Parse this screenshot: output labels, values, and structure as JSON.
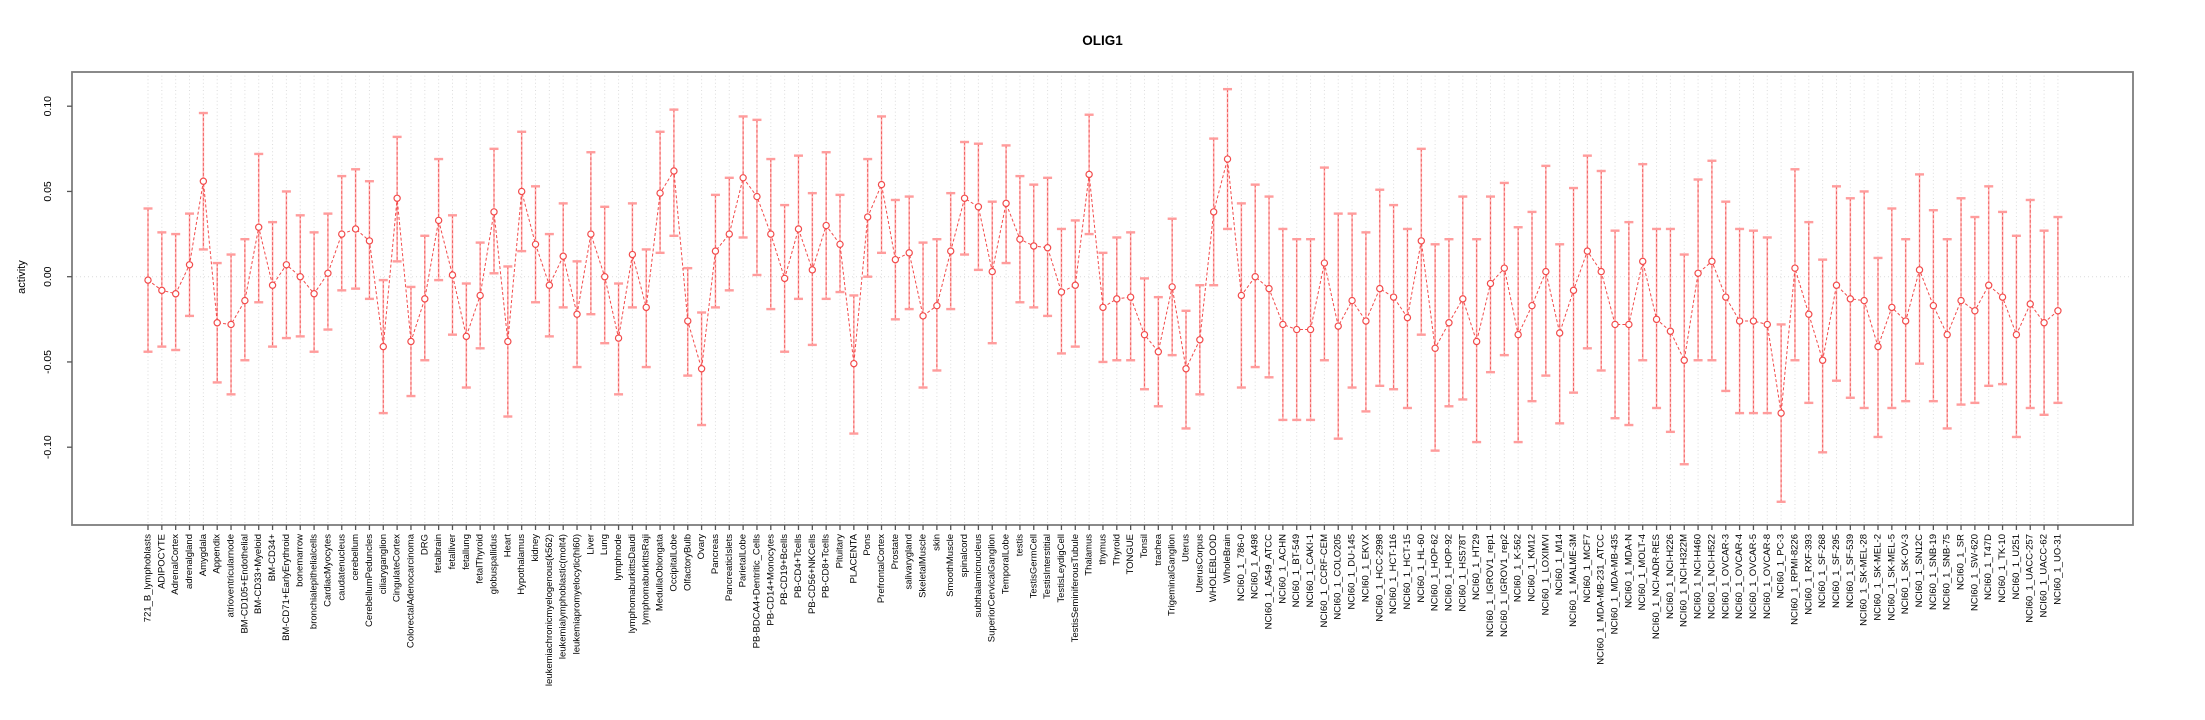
{
  "title": "OLIG1",
  "y_axis": {
    "label": "activity",
    "ticks": [
      "0.10",
      "0.05",
      "0.00",
      "-0.05",
      "-0.10"
    ],
    "tick_values": [
      0.1,
      0.05,
      0.0,
      -0.05,
      -0.1
    ]
  },
  "style": {
    "series_color": "#f24b4b",
    "stem_dash_color": "#f26060",
    "stem_underlay_color": "#ffb3b3",
    "cap_color": "#ff9c9c",
    "grid_color": "#dcdcdc",
    "border_color": "#7d7d7d",
    "tick_color": "#555555",
    "text_color": "#000000",
    "background": "#ffffff"
  },
  "chart_data": {
    "type": "line",
    "title": "OLIG1",
    "xlabel": "",
    "ylabel": "activity",
    "ylim": [
      -0.146,
      0.12
    ],
    "y_ticks": [
      -0.1,
      -0.05,
      0.0,
      0.05,
      0.1
    ],
    "grid": "vertical dotted gridline per category; dotted horizontal line at 0",
    "legend": "none",
    "marker": "open-circle",
    "line_style": "dashed",
    "error_bars": true,
    "categories": [
      "721_B_lymphoblasts",
      "ADIPOCYTE",
      "AdrenalCortex",
      "adrenalgland",
      "Amygdala",
      "Appendix",
      "atrioventricularnode",
      "BM-CD105+Endothelial",
      "BM-CD33+Myeloid",
      "BM-CD34+",
      "BM-CD71+EarlyErythroid",
      "bonemarrow",
      "bronchialepithelialcells",
      "CardiacMyocytes",
      "caudatenucleus",
      "cerebellum",
      "CerebellumPeduncles",
      "ciliaryganglion",
      "CingulateCortex",
      "ColorectalAdenocarcinoma",
      "DRG",
      "fetalbrain",
      "fetalliver",
      "fetallung",
      "fetalThyroid",
      "globuspallidus",
      "Heart",
      "Hypothalamus",
      "kidney",
      "leukemiachronicmyelogenous(k562)",
      "leukemialymphoblastic(molt4)",
      "leukemiapromyelocytic(hl60)",
      "Liver",
      "Lung",
      "lymphnode",
      "lymphomaburkittsDaudi",
      "lymphomaburkittsRaji",
      "MedullaOblongata",
      "OccipitalLobe",
      "OlfactoryBulb",
      "Ovary",
      "Pancreas",
      "PancreaticIslets",
      "ParietalLobe",
      "PB-BDCA4+Dentritic_Cells",
      "PB-CD14+Monocytes",
      "PB-CD19+Bcells",
      "PB-CD4+Tcells",
      "PB-CD56+NKCells",
      "PB-CD8+Tcells",
      "Pituitary",
      "PLACENTA",
      "Pons",
      "PrefrontalCortex",
      "Prostate",
      "salivarygland",
      "SkeletalMuscle",
      "skin",
      "SmoothMuscle",
      "spinalcord",
      "subthalamicnucleus",
      "SuperiorCervicalGanglion",
      "TemporalLobe",
      "testis",
      "TestisGermCell",
      "TestisInterstitial",
      "TestisLeydigCell",
      "TestisSeminiferousTubule",
      "Thalamus",
      "thymus",
      "Thyroid",
      "TONGUE",
      "Tonsil",
      "trachea",
      "TrigeminalGanglion",
      "Uterus",
      "UterusCorpus",
      "WHOLEBLOOD",
      "WholeBrain",
      "NCI60_1_786-0",
      "NCI60_1_A498",
      "NCI60_1_A549_ATCC",
      "NCI60_1_ACHN",
      "NCI60_1_BT-549",
      "NCI60_1_CAKI-1",
      "NCI60_1_CCRF-CEM",
      "NCI60_1_COLO205",
      "NCI60_1_DU-145",
      "NCI60_1_EKVX",
      "NCI60_1_HCC-2998",
      "NCI60_1_HCT-116",
      "NCI60_1_HCT-15",
      "NCI60_1_HL-60",
      "NCI60_1_HOP-62",
      "NCI60_1_HOP-92",
      "NCI60_1_HS578T",
      "NCI60_1_HT29",
      "NCI60_1_IGROV1_rep1",
      "NCI60_1_IGROV1_rep2",
      "NCI60_1_K-562",
      "NCI60_1_KM12",
      "NCI60_1_LOXIMVI",
      "NCI60_1_M14",
      "NCI60_1_MALME-3M",
      "NCI60_1_MCF7",
      "NCI60_1_MDA-MB-231_ATCC",
      "NCI60_1_MDA-MB-435",
      "NCI60_1_MDA-N",
      "NCI60_1_MOLT-4",
      "NCI60_1_NCI-ADR-RES",
      "NCI60_1_NCI-H226",
      "NCI60_1_NCI-H322M",
      "NCI60_1_NCI-H460",
      "NCI60_1_NCI-H522",
      "NCI60_1_OVCAR-3",
      "NCI60_1_OVCAR-4",
      "NCI60_1_OVCAR-5",
      "NCI60_1_OVCAR-8",
      "NCI60_1_PC-3",
      "NCI60_1_RPMI-8226",
      "NCI60_1_RXF-393",
      "NCI60_1_SF-268",
      "NCI60_1_SF-295",
      "NCI60_1_SF-539",
      "NCI60_1_SK-MEL-28",
      "NCI60_1_SK-MEL-2",
      "NCI60_1_SK-MEL-5",
      "NCI60_1_SK-OV-3",
      "NCI60_1_SN12C",
      "NCI60_1_SNB-19",
      "NCI60_1_SNB-75",
      "NCI60_1_SR",
      "NCI60_1_SW-620",
      "NCI60_1_T47D",
      "NCI60_1_TK-10",
      "NCI60_1_U251",
      "NCI60_1_UACC-257",
      "NCI60_1_UACC-62",
      "NCI60_1_UO-31"
    ],
    "values": [
      -0.002,
      -0.008,
      -0.01,
      0.007,
      0.056,
      -0.027,
      -0.028,
      -0.014,
      0.029,
      -0.005,
      0.007,
      0.0,
      -0.01,
      0.002,
      0.025,
      0.028,
      0.021,
      -0.041,
      0.046,
      -0.038,
      -0.013,
      0.033,
      0.001,
      -0.035,
      -0.011,
      0.038,
      -0.038,
      0.05,
      0.019,
      -0.005,
      0.012,
      -0.022,
      0.025,
      0.0,
      -0.036,
      0.013,
      -0.018,
      0.049,
      0.062,
      -0.026,
      -0.054,
      0.015,
      0.025,
      0.058,
      0.047,
      0.025,
      -0.001,
      0.028,
      0.004,
      0.03,
      0.019,
      -0.051,
      0.035,
      0.054,
      0.01,
      0.014,
      -0.023,
      -0.017,
      0.015,
      0.046,
      0.041,
      0.003,
      0.043,
      0.022,
      0.018,
      0.017,
      -0.009,
      -0.005,
      0.06,
      -0.018,
      -0.013,
      -0.012,
      -0.034,
      -0.044,
      -0.006,
      -0.054,
      -0.037,
      0.038,
      0.069,
      -0.011,
      0.0,
      -0.007,
      -0.028,
      -0.031,
      -0.031,
      0.008,
      -0.029,
      -0.014,
      -0.026,
      -0.007,
      -0.012,
      -0.024,
      0.021,
      -0.042,
      -0.027,
      -0.013,
      -0.038,
      -0.004,
      0.005,
      -0.034,
      -0.017,
      0.003,
      -0.033,
      -0.008,
      0.015,
      0.003,
      -0.028,
      -0.028,
      0.009,
      -0.025,
      -0.032,
      -0.049,
      0.002,
      0.009,
      -0.012,
      -0.026,
      -0.026,
      -0.028,
      -0.08,
      0.005,
      -0.022,
      -0.049,
      -0.005,
      -0.013,
      -0.014,
      -0.041,
      -0.018,
      -0.026,
      0.004,
      -0.017,
      -0.034,
      -0.014,
      -0.02,
      -0.005,
      -0.012,
      -0.034,
      -0.016,
      -0.027,
      -0.02
    ],
    "err_hi": [
      0.04,
      0.026,
      0.025,
      0.037,
      0.096,
      0.008,
      0.013,
      0.022,
      0.072,
      0.032,
      0.05,
      0.036,
      0.026,
      0.037,
      0.059,
      0.063,
      0.056,
      -0.002,
      0.082,
      -0.006,
      0.024,
      0.069,
      0.036,
      -0.004,
      0.02,
      0.075,
      0.006,
      0.085,
      0.053,
      0.025,
      0.043,
      0.009,
      0.073,
      0.041,
      -0.004,
      0.043,
      0.016,
      0.085,
      0.098,
      0.005,
      -0.021,
      0.048,
      0.058,
      0.094,
      0.092,
      0.069,
      0.042,
      0.071,
      0.049,
      0.073,
      0.048,
      -0.011,
      0.069,
      0.094,
      0.045,
      0.047,
      0.02,
      0.022,
      0.049,
      0.079,
      0.078,
      0.044,
      0.077,
      0.059,
      0.054,
      0.058,
      0.028,
      0.033,
      0.095,
      0.014,
      0.023,
      0.026,
      -0.001,
      -0.012,
      0.034,
      -0.02,
      -0.005,
      0.081,
      0.11,
      0.043,
      0.054,
      0.047,
      0.028,
      0.022,
      0.022,
      0.064,
      0.037,
      0.037,
      0.026,
      0.051,
      0.042,
      0.028,
      0.075,
      0.019,
      0.022,
      0.047,
      0.022,
      0.047,
      0.055,
      0.029,
      0.038,
      0.065,
      0.019,
      0.052,
      0.071,
      0.062,
      0.027,
      0.032,
      0.066,
      0.028,
      0.028,
      0.013,
      0.057,
      0.068,
      0.044,
      0.028,
      0.027,
      0.023,
      -0.028,
      0.063,
      0.032,
      0.01,
      0.053,
      0.046,
      0.05,
      0.011,
      0.04,
      0.022,
      0.06,
      0.039,
      0.022,
      0.046,
      0.035,
      0.053,
      0.038,
      0.024,
      0.045,
      0.027,
      0.035
    ],
    "err_lo": [
      -0.044,
      -0.041,
      -0.043,
      -0.023,
      0.016,
      -0.062,
      -0.069,
      -0.049,
      -0.015,
      -0.041,
      -0.036,
      -0.035,
      -0.044,
      -0.031,
      -0.008,
      -0.007,
      -0.013,
      -0.08,
      0.009,
      -0.07,
      -0.049,
      -0.002,
      -0.034,
      -0.065,
      -0.042,
      0.002,
      -0.082,
      0.015,
      -0.015,
      -0.035,
      -0.018,
      -0.053,
      -0.022,
      -0.039,
      -0.069,
      -0.018,
      -0.053,
      0.014,
      0.024,
      -0.058,
      -0.087,
      -0.018,
      -0.008,
      0.023,
      0.001,
      -0.019,
      -0.044,
      -0.013,
      -0.04,
      -0.013,
      -0.009,
      -0.092,
      0.0,
      0.014,
      -0.025,
      -0.019,
      -0.065,
      -0.055,
      -0.019,
      0.013,
      0.004,
      -0.039,
      0.008,
      -0.015,
      -0.018,
      -0.023,
      -0.045,
      -0.041,
      0.025,
      -0.05,
      -0.049,
      -0.049,
      -0.066,
      -0.076,
      -0.046,
      -0.089,
      -0.069,
      -0.005,
      0.028,
      -0.065,
      -0.053,
      -0.059,
      -0.084,
      -0.084,
      -0.084,
      -0.049,
      -0.095,
      -0.065,
      -0.079,
      -0.064,
      -0.066,
      -0.077,
      -0.034,
      -0.102,
      -0.076,
      -0.072,
      -0.097,
      -0.056,
      -0.046,
      -0.097,
      -0.073,
      -0.058,
      -0.086,
      -0.068,
      -0.042,
      -0.055,
      -0.083,
      -0.087,
      -0.049,
      -0.077,
      -0.091,
      -0.11,
      -0.049,
      -0.049,
      -0.067,
      -0.08,
      -0.08,
      -0.08,
      -0.132,
      -0.049,
      -0.074,
      -0.103,
      -0.061,
      -0.071,
      -0.077,
      -0.094,
      -0.077,
      -0.073,
      -0.051,
      -0.073,
      -0.089,
      -0.075,
      -0.074,
      -0.064,
      -0.063,
      -0.094,
      -0.077,
      -0.081,
      -0.074
    ]
  }
}
